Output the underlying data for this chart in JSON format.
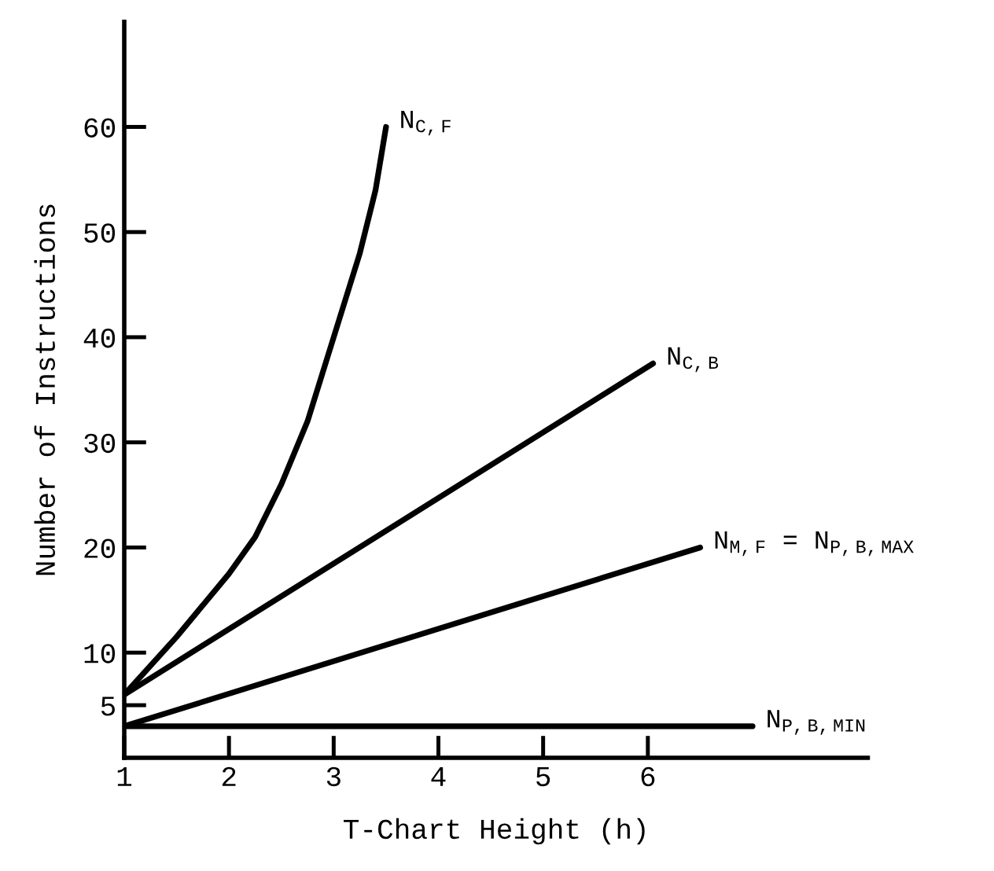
{
  "chart_data": {
    "type": "line",
    "xlabel": "T-Chart Height (h)",
    "ylabel": "Number of Instructions",
    "xlim": [
      1,
      8.1
    ],
    "ylim": [
      0,
      70
    ],
    "xticks": [
      1,
      2,
      3,
      4,
      5,
      6
    ],
    "yticks": [
      5,
      10,
      20,
      30,
      40,
      50,
      60
    ],
    "grid": false,
    "legend": false,
    "marker": "none",
    "line_style": "solid",
    "series": [
      {
        "name": "N$_{C,F}$",
        "color": "#000000",
        "x": [
          1,
          1.5,
          2,
          2.25,
          2.5,
          2.75,
          3,
          3.25,
          3.4,
          3.5
        ],
        "values": [
          6,
          11.5,
          17.5,
          21,
          26,
          32,
          40,
          48,
          54,
          60
        ]
      },
      {
        "name": "N$_{C,B}$",
        "color": "#000000",
        "x": [
          1,
          6.05
        ],
        "values": [
          6,
          37.5
        ]
      },
      {
        "name": "N$_{M,F}$ = N$_{P,B,MAX}$",
        "color": "#000000",
        "x": [
          1,
          6.5
        ],
        "values": [
          3,
          20
        ]
      },
      {
        "name": "N$_{P,B,MIN}$",
        "color": "#000000",
        "x": [
          1,
          7
        ],
        "values": [
          3,
          3
        ]
      }
    ]
  }
}
